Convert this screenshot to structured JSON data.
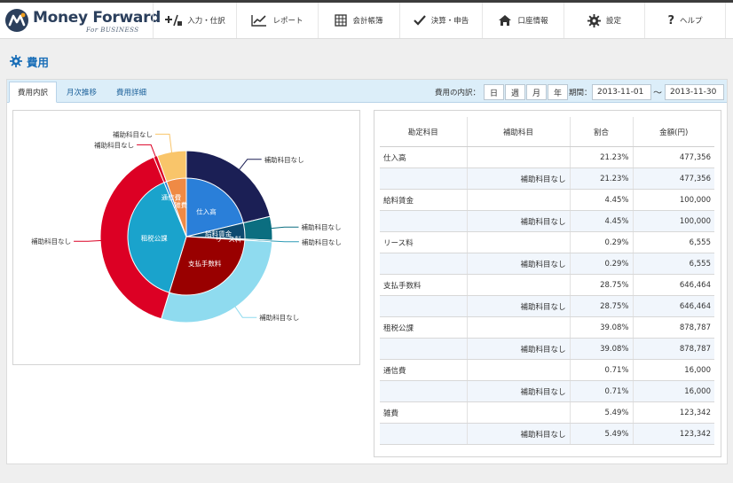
{
  "header": {
    "brand": "Money Forward",
    "brand_sub": "For BUSINESS",
    "nav": [
      {
        "label": "入力・仕訳",
        "icon": "plus-slash-icon"
      },
      {
        "label": "レポート",
        "icon": "line-chart-icon"
      },
      {
        "label": "会計帳簿",
        "icon": "grid-book-icon"
      },
      {
        "label": "決算・申告",
        "icon": "checkmark-icon"
      },
      {
        "label": "口座情報",
        "icon": "house-icon"
      },
      {
        "label": "設定",
        "icon": "gear-icon"
      },
      {
        "label": "ヘルプ",
        "icon": "question-icon"
      }
    ]
  },
  "page": {
    "title": "費用",
    "title_icon": "gear-icon"
  },
  "tabs": [
    {
      "label": "費用内訳",
      "active": true
    },
    {
      "label": "月次推移",
      "active": false
    },
    {
      "label": "費用詳細",
      "active": false
    }
  ],
  "filters": {
    "breakdown_label": "費用の内訳：",
    "periods": [
      "日",
      "週",
      "月",
      "年"
    ],
    "period_label": "期間：",
    "date_from": "2013-11-01",
    "tilde": "〜",
    "date_to": "2013-11-30"
  },
  "chart_data": {
    "type": "pie",
    "inner_labels": [
      "仕入高",
      "給料賃金",
      "リース料",
      "支払手数料",
      "租税公課",
      "通信費",
      "雑費"
    ],
    "outer_labels": [
      "補助科目なし",
      "補助科目なし",
      "補助科目なし",
      "補助科目なし",
      "補助科目なし",
      "補助科目なし",
      "補助科目なし"
    ],
    "values": [
      21.23,
      4.45,
      0.29,
      28.75,
      39.08,
      0.71,
      5.49
    ],
    "inner_colors": [
      "#2a7fd9",
      "#0d4a70",
      "#0d4a70",
      "#990000",
      "#1aa3cc",
      "#2a7fd9",
      "#ef8a45"
    ],
    "outer_colors": [
      "#1b1f55",
      "#0b6e80",
      "#2e9bb5",
      "#8fdbef",
      "#dc0024",
      "#dc0024",
      "#f9c56a"
    ]
  },
  "table": {
    "headers": [
      "勘定科目",
      "補助科目",
      "割合",
      "金額(円)"
    ],
    "rows": [
      {
        "account": "仕入高",
        "sub": "補助科目なし",
        "pct": "21.23%",
        "amount": "477,356"
      },
      {
        "account": "給料賃金",
        "sub": "補助科目なし",
        "pct": "4.45%",
        "amount": "100,000"
      },
      {
        "account": "リース料",
        "sub": "補助科目なし",
        "pct": "0.29%",
        "amount": "6,555"
      },
      {
        "account": "支払手数料",
        "sub": "補助科目なし",
        "pct": "28.75%",
        "amount": "646,464"
      },
      {
        "account": "租税公課",
        "sub": "補助科目なし",
        "pct": "39.08%",
        "amount": "878,787"
      },
      {
        "account": "通信費",
        "sub": "補助科目なし",
        "pct": "0.71%",
        "amount": "16,000"
      },
      {
        "account": "雑費",
        "sub": "補助科目なし",
        "pct": "5.49%",
        "amount": "123,342"
      }
    ]
  }
}
